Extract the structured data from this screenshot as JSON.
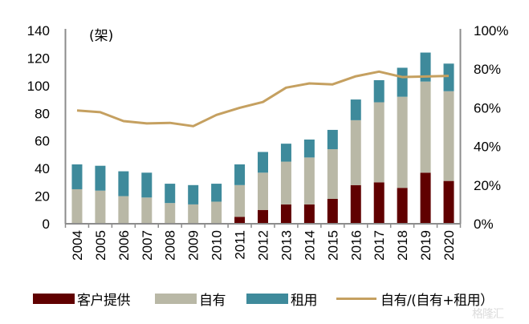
{
  "chart_data": {
    "type": "bar",
    "stacked": true,
    "title": "",
    "unit_label": "(架)",
    "categories": [
      "2004",
      "2005",
      "2006",
      "2007",
      "2008",
      "2009",
      "2010",
      "2011",
      "2012",
      "2013",
      "2014",
      "2015",
      "2016",
      "2017",
      "2018",
      "2019",
      "2020"
    ],
    "series": [
      {
        "name": "客户提供",
        "type": "bar",
        "axis": "left",
        "color": "#600000",
        "values": [
          0,
          0,
          0,
          0,
          0,
          0,
          0,
          5,
          10,
          14,
          14,
          18,
          28,
          30,
          26,
          37,
          31
        ]
      },
      {
        "name": "自有",
        "type": "bar",
        "axis": "left",
        "color": "#b9b8a6",
        "values": [
          25,
          24,
          20,
          19,
          15,
          14,
          16,
          23,
          27,
          31,
          34,
          36,
          47,
          58,
          66,
          66,
          65
        ]
      },
      {
        "name": "租用",
        "type": "bar",
        "axis": "left",
        "color": "#3e8a9b",
        "values": [
          18,
          18,
          18,
          18,
          14,
          14,
          13,
          15,
          15,
          13,
          13,
          14,
          15,
          16,
          21,
          21,
          20
        ]
      },
      {
        "name": "自有/(自有+租用）",
        "type": "line",
        "axis": "right",
        "color": "#c5a060",
        "values": [
          58.6,
          57.7,
          53.1,
          51.9,
          52.2,
          50.5,
          56.3,
          60.0,
          63.0,
          70.4,
          72.6,
          72.1,
          76.3,
          78.7,
          75.9,
          76.2,
          76.5
        ]
      }
    ],
    "y_left": {
      "min": 0,
      "max": 140,
      "ticks": [
        0,
        20,
        40,
        60,
        80,
        100,
        120,
        140
      ]
    },
    "y_right": {
      "min": 0,
      "max": 100,
      "ticks": [
        0,
        20,
        40,
        60,
        80,
        100
      ],
      "format": "percent"
    },
    "xlabel": "",
    "ylabel": "",
    "grid": false,
    "legend_position": "bottom"
  },
  "legend": [
    {
      "label": "客户提供",
      "kind": "bar",
      "color": "#600000"
    },
    {
      "label": "自有",
      "kind": "bar",
      "color": "#b9b8a6"
    },
    {
      "label": "租用",
      "kind": "bar",
      "color": "#3e8a9b"
    },
    {
      "label": "自有/(自有+租用）",
      "kind": "line",
      "color": "#c5a060"
    }
  ],
  "watermark": "格隆汇"
}
